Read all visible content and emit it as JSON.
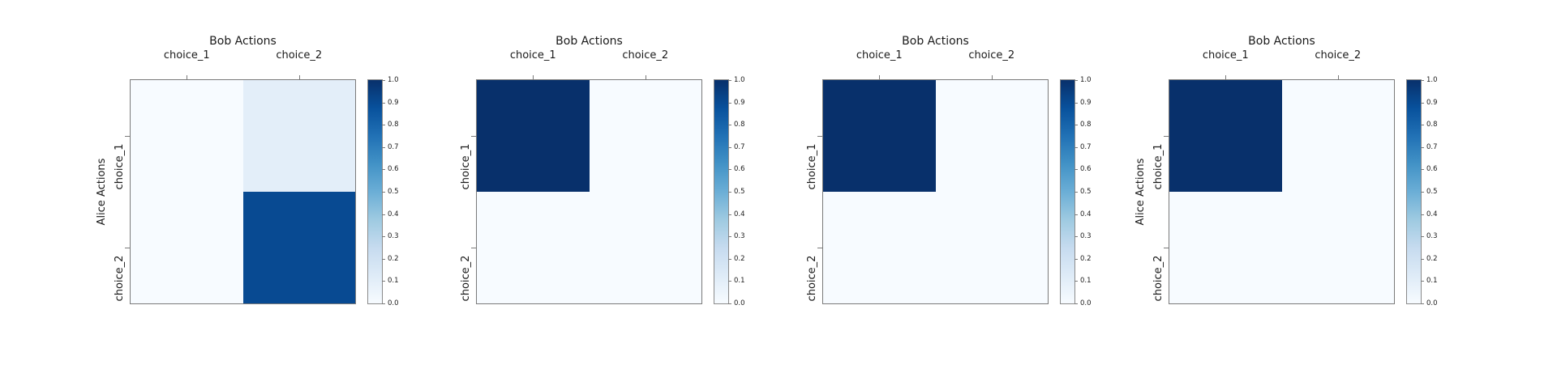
{
  "figure": {
    "background": "#ffffff",
    "text_color": "#1a1a1a",
    "spine_color": "#7a7a7a",
    "colormap_name": "Blues",
    "colormap_stops": [
      "#f7fbff",
      "#deebf7",
      "#c6dbef",
      "#9ecae1",
      "#6baed6",
      "#4292c6",
      "#2171b5",
      "#08519c",
      "#08306b"
    ]
  },
  "chart_data": [
    {
      "type": "heatmap",
      "title": "Bob Actions",
      "ylabel": "Alice Actions",
      "x_categories": [
        "choice_1",
        "choice_2"
      ],
      "y_categories": [
        "choice_1",
        "choice_2"
      ],
      "values": [
        [
          0.0,
          0.1
        ],
        [
          0.0,
          0.9
        ]
      ],
      "vmin": 0.0,
      "vmax": 1.0,
      "colorbar_ticks": [
        "0.0",
        "0.1",
        "0.2",
        "0.3",
        "0.4",
        "0.5",
        "0.6",
        "0.7",
        "0.8",
        "0.9",
        "1.0"
      ]
    },
    {
      "type": "heatmap",
      "title": "Bob Actions",
      "ylabel": "",
      "x_categories": [
        "choice_1",
        "choice_2"
      ],
      "y_categories": [
        "choice_1",
        "choice_2"
      ],
      "values": [
        [
          1.0,
          0.0
        ],
        [
          0.0,
          0.0
        ]
      ],
      "vmin": 0.0,
      "vmax": 1.0,
      "colorbar_ticks": [
        "0.0",
        "0.1",
        "0.2",
        "0.3",
        "0.4",
        "0.5",
        "0.6",
        "0.7",
        "0.8",
        "0.9",
        "1.0"
      ]
    },
    {
      "type": "heatmap",
      "title": "Bob Actions",
      "ylabel": "",
      "x_categories": [
        "choice_1",
        "choice_2"
      ],
      "y_categories": [
        "choice_1",
        "choice_2"
      ],
      "values": [
        [
          1.0,
          0.0
        ],
        [
          0.0,
          0.0
        ]
      ],
      "vmin": 0.0,
      "vmax": 1.0,
      "colorbar_ticks": [
        "0.0",
        "0.1",
        "0.2",
        "0.3",
        "0.4",
        "0.5",
        "0.6",
        "0.7",
        "0.8",
        "0.9",
        "1.0"
      ]
    },
    {
      "type": "heatmap",
      "title": "Bob Actions",
      "ylabel": "Alice Actions",
      "x_categories": [
        "choice_1",
        "choice_2"
      ],
      "y_categories": [
        "choice_1",
        "choice_2"
      ],
      "values": [
        [
          1.0,
          0.0
        ],
        [
          0.0,
          0.0
        ]
      ],
      "vmin": 0.0,
      "vmax": 1.0,
      "colorbar_ticks": [
        "0.0",
        "0.1",
        "0.2",
        "0.3",
        "0.4",
        "0.5",
        "0.6",
        "0.7",
        "0.8",
        "0.9",
        "1.0"
      ]
    }
  ]
}
